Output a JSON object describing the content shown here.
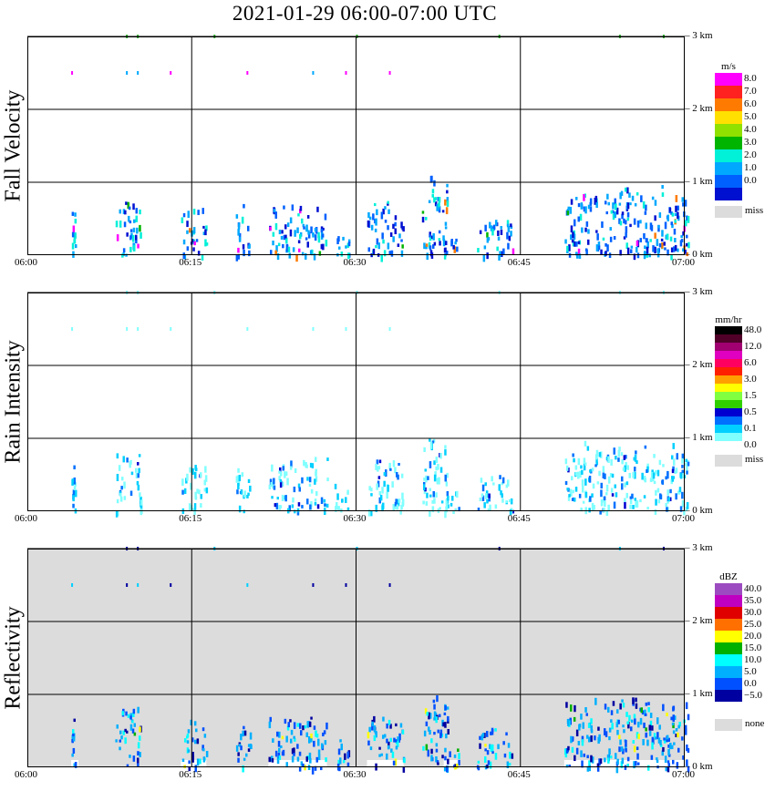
{
  "title": "2021-01-29   06:00-07:00 UTC",
  "panels": [
    {
      "ylabel": "Fall Velocity",
      "unit": "m/s",
      "legend": [
        {
          "label": "8.0",
          "color": "#ff00ff"
        },
        {
          "label": "7.0",
          "color": "#ff2020"
        },
        {
          "label": "6.0",
          "color": "#ff7a00"
        },
        {
          "label": "5.0",
          "color": "#ffe000"
        },
        {
          "label": "4.0",
          "color": "#90e000"
        },
        {
          "label": "3.0",
          "color": "#00b400"
        },
        {
          "label": "2.0",
          "color": "#00f0d8"
        },
        {
          "label": "1.0",
          "color": "#00a8ff"
        },
        {
          "label": "0.0",
          "color": "#0060ff"
        },
        {
          "label": "",
          "color": "#0010d0"
        }
      ],
      "miss_label": "miss",
      "background": "#ffffff"
    },
    {
      "ylabel": "Rain Intensity",
      "unit": "mm/hr",
      "legend": [
        {
          "label": "48.0",
          "color": "#000000"
        },
        {
          "label": "",
          "color": "#500028"
        },
        {
          "label": "12.0",
          "color": "#a00070"
        },
        {
          "label": "",
          "color": "#e000c0"
        },
        {
          "label": "6.0",
          "color": "#ff0060"
        },
        {
          "label": "",
          "color": "#ff2000"
        },
        {
          "label": "3.0",
          "color": "#ffa000"
        },
        {
          "label": "",
          "color": "#ffff00"
        },
        {
          "label": "1.5",
          "color": "#80ff40"
        },
        {
          "label": "",
          "color": "#30d000"
        },
        {
          "label": "0.5",
          "color": "#0000d0"
        },
        {
          "label": "",
          "color": "#0070ff"
        },
        {
          "label": "0.1",
          "color": "#00d0ff"
        },
        {
          "label": "",
          "color": "#80ffff"
        },
        {
          "label": "0.0",
          "color": "#ffffff"
        }
      ],
      "miss_label": "miss",
      "background": "#ffffff"
    },
    {
      "ylabel": "Reflectivity",
      "unit": "dBZ",
      "legend": [
        {
          "label": "40.0",
          "color": "#9c4cc0"
        },
        {
          "label": "35.0",
          "color": "#c000c0"
        },
        {
          "label": "30.0",
          "color": "#e00000"
        },
        {
          "label": "25.0",
          "color": "#ff7000"
        },
        {
          "label": "20.0",
          "color": "#ffff00"
        },
        {
          "label": "15.0",
          "color": "#00b000"
        },
        {
          "label": "10.0",
          "color": "#00ffff"
        },
        {
          "label": "5.0",
          "color": "#00b0ff"
        },
        {
          "label": "0.0",
          "color": "#0050ff"
        },
        {
          "label": "−5.0",
          "color": "#0000a0"
        },
        {
          "label": "",
          "color": "#ffffff"
        }
      ],
      "miss_label": "none",
      "background": "#dcdcdc"
    }
  ],
  "x_ticks": [
    "06:00",
    "06:15",
    "06:30",
    "06:45",
    "07:00"
  ],
  "height_labels": [
    "3 km",
    "2 km",
    "1 km",
    "0 km"
  ],
  "chart_data": {
    "type": "heatmap",
    "title": "2021-01-29   06:00-07:00 UTC",
    "x_range": [
      "06:00",
      "07:00"
    ],
    "x_ticks": [
      "06:00",
      "06:15",
      "06:30",
      "06:45",
      "07:00"
    ],
    "y_range_km": [
      0,
      3.5
    ],
    "y_ticks": [
      "3 km",
      "2 km",
      "1 km",
      "0 km"
    ],
    "grid": true,
    "panels": [
      "Fall Velocity",
      "Rain Intensity",
      "Reflectivity"
    ],
    "echoes": [
      {
        "start": "06:04",
        "end": "06:04",
        "top_km": 0.85
      },
      {
        "start": "06:08",
        "end": "06:10",
        "top_km": 1.0
      },
      {
        "start": "06:14",
        "end": "06:16",
        "top_km": 0.8
      },
      {
        "start": "06:19",
        "end": "06:20",
        "top_km": 0.85
      },
      {
        "start": "06:22",
        "end": "06:27",
        "top_km": 0.9
      },
      {
        "start": "06:28",
        "end": "06:29",
        "top_km": 0.5
      },
      {
        "start": "06:31",
        "end": "06:34",
        "top_km": 0.9
      },
      {
        "start": "06:36",
        "end": "06:38",
        "top_km": 1.3
      },
      {
        "start": "06:38",
        "end": "06:39",
        "top_km": 0.35
      },
      {
        "start": "06:41",
        "end": "06:44",
        "top_km": 0.65
      },
      {
        "start": "06:49",
        "end": "07:00",
        "top_km": 1.15
      }
    ],
    "upper_echoes": [
      {
        "time": "06:04",
        "height_km": 2.5
      },
      {
        "time": "06:09",
        "height_km": 2.5
      },
      {
        "time": "06:10",
        "height_km": 2.5
      },
      {
        "time": "06:13",
        "height_km": 2.5
      },
      {
        "time": "06:20",
        "height_km": 2.5
      },
      {
        "time": "06:26",
        "height_km": 2.5
      },
      {
        "time": "06:29",
        "height_km": 2.5
      },
      {
        "time": "06:33",
        "height_km": 2.5
      },
      {
        "time": "06:09",
        "height_km": 3.0
      },
      {
        "time": "06:10",
        "height_km": 3.0
      },
      {
        "time": "06:17",
        "height_km": 3.0
      },
      {
        "time": "06:30",
        "height_km": 3.0
      },
      {
        "time": "06:43",
        "height_km": 3.0
      },
      {
        "time": "06:54",
        "height_km": 3.0
      },
      {
        "time": "06:58",
        "height_km": 3.0
      }
    ]
  }
}
